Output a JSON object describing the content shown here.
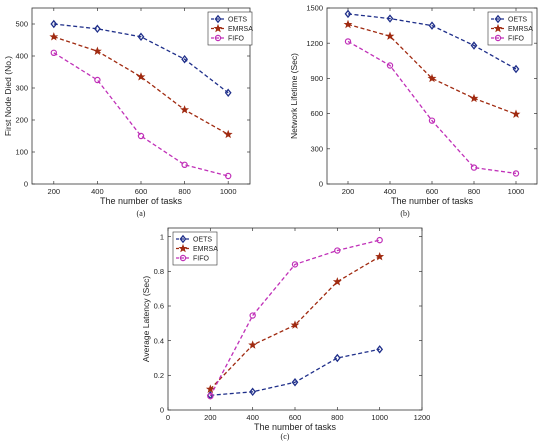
{
  "chart_data": [
    {
      "type": "line",
      "panel_label": "(a)",
      "xlabel": "The number of tasks",
      "ylabel": "First Node Died (No.)",
      "x": [
        200,
        400,
        600,
        800,
        1000
      ],
      "xticks": [
        200,
        400,
        600,
        800,
        1000
      ],
      "xlim": [
        100,
        1100
      ],
      "yticks": [
        0,
        100,
        200,
        300,
        400,
        500
      ],
      "ylim": [
        0,
        550
      ],
      "grid": false,
      "legend_position": "top-right",
      "series": [
        {
          "name": "OETS",
          "values": [
            500,
            485,
            460,
            390,
            285
          ],
          "color": "#1f2f8a",
          "marker": "diamond"
        },
        {
          "name": "EMRSA",
          "values": [
            460,
            415,
            335,
            232,
            155
          ],
          "color": "#a02a10",
          "marker": "star"
        },
        {
          "name": "FIFO",
          "values": [
            410,
            325,
            150,
            60,
            25
          ],
          "color": "#c030b8",
          "marker": "circle"
        }
      ]
    },
    {
      "type": "line",
      "panel_label": "(b)",
      "xlabel": "The number of tasks",
      "ylabel": "Network Lifetime (Sec)",
      "x": [
        200,
        400,
        600,
        800,
        1000
      ],
      "xticks": [
        200,
        400,
        600,
        800,
        1000
      ],
      "xlim": [
        100,
        1100
      ],
      "yticks": [
        0,
        300,
        600,
        900,
        1200,
        1500
      ],
      "ylim": [
        0,
        1500
      ],
      "grid": false,
      "legend_position": "top-right",
      "series": [
        {
          "name": "OETS",
          "values": [
            1450,
            1410,
            1350,
            1180,
            980
          ],
          "color": "#1f2f8a",
          "marker": "diamond"
        },
        {
          "name": "EMRSA",
          "values": [
            1360,
            1260,
            900,
            730,
            595
          ],
          "color": "#a02a10",
          "marker": "star"
        },
        {
          "name": "FIFO",
          "values": [
            1215,
            1010,
            540,
            140,
            90
          ],
          "color": "#c030b8",
          "marker": "circle"
        }
      ]
    },
    {
      "type": "line",
      "panel_label": "(c)",
      "xlabel": "The number of tasks",
      "ylabel": "Average Latency (Sec)",
      "x": [
        200,
        400,
        600,
        800,
        1000
      ],
      "xticks": [
        0,
        200,
        400,
        600,
        800,
        1000,
        1200
      ],
      "xlim": [
        0,
        1200
      ],
      "yticks": [
        0,
        0.2,
        0.4,
        0.6,
        0.8,
        1
      ],
      "ylim": [
        0,
        1.05
      ],
      "grid": false,
      "legend_position": "top-left",
      "series": [
        {
          "name": "OETS",
          "values": [
            0.085,
            0.105,
            0.16,
            0.3,
            0.35
          ],
          "color": "#1f2f8a",
          "marker": "diamond"
        },
        {
          "name": "EMRSA",
          "values": [
            0.12,
            0.375,
            0.49,
            0.74,
            0.885
          ],
          "color": "#a02a10",
          "marker": "star"
        },
        {
          "name": "FIFO",
          "values": [
            0.08,
            0.545,
            0.84,
            0.92,
            0.98
          ],
          "color": "#c030b8",
          "marker": "circle"
        }
      ]
    }
  ]
}
